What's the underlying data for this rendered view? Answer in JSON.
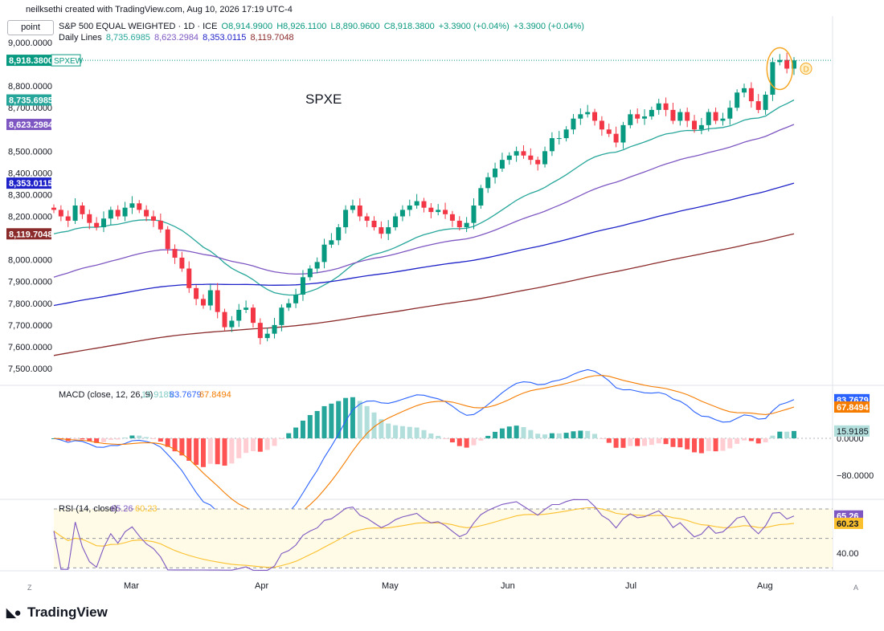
{
  "header": {
    "created_by": "neilksethi created with TradingView.com, Aug 10, 2026 17:19 UTC-4",
    "symbol_line": "S&P 500 EQUAL WEIGHTED · 1D · ICE",
    "ohlc": {
      "o": "O8,914.9900",
      "h": "H8,926.1100",
      "l": "L8,890.9600",
      "c": "C8,918.3800"
    },
    "change": "+3.3900 (+0.04%)",
    "change2": "+3.3900 (+0.04%)",
    "daily_lines_label": "Daily Lines",
    "daily_lines_values": [
      "8,735.6985",
      "8,623.2984",
      "8,353.0115",
      "8,119.7048"
    ]
  },
  "point_button": "point",
  "annotation": "SPXE",
  "chart_data": [
    {
      "type": "candlestick",
      "title": "S&P 500 EQUAL WEIGHTED · 1D · ICE",
      "x_ticks": [
        "Mar",
        "Apr",
        "May",
        "Jun",
        "Jul",
        "Aug"
      ],
      "y_ticks": [
        "9,000.0000",
        "8,800.0000",
        "8,700.0000",
        "8,500.0000",
        "8,400.0000",
        "8,300.0000",
        "8,200.0000",
        "8,000.0000",
        "7,900.0000",
        "7,800.0000",
        "7,700.0000",
        "7,600.0000",
        "7,500.0000"
      ],
      "ylim": [
        7450,
        9060
      ],
      "last_price_label": "8,918.3800",
      "symbol_tag": "SPXEW",
      "close_approx": [
        8230,
        8200,
        8180,
        8250,
        8210,
        8170,
        8150,
        8190,
        8230,
        8200,
        8240,
        8260,
        8230,
        8200,
        8180,
        8140,
        8050,
        8010,
        7960,
        7870,
        7820,
        7790,
        7860,
        7760,
        7690,
        7720,
        7770,
        7780,
        7710,
        7640,
        7660,
        7700,
        7780,
        7800,
        7840,
        7920,
        7960,
        7990,
        8070,
        8090,
        8150,
        8230,
        8250,
        8200,
        8180,
        8150,
        8120,
        8150,
        8200,
        8230,
        8250,
        8270,
        8240,
        8220,
        8230,
        8210,
        8180,
        8150,
        8170,
        8250,
        8330,
        8380,
        8420,
        8460,
        8480,
        8500,
        8480,
        8460,
        8440,
        8500,
        8560,
        8560,
        8600,
        8650,
        8670,
        8680,
        8640,
        8600,
        8580,
        8540,
        8620,
        8670,
        8650,
        8660,
        8690,
        8720,
        8690,
        8640,
        8680,
        8640,
        8600,
        8620,
        8680,
        8640,
        8650,
        8700,
        8770,
        8790,
        8730,
        8690,
        8760,
        8910,
        8920,
        8880,
        8918
      ],
      "moving_averages": [
        {
          "name": "8,735.6985",
          "color": "#26a69a",
          "last": 8735.6985
        },
        {
          "name": "8,623.2984",
          "color": "#7e57c2",
          "last": 8623.2984
        },
        {
          "name": "8,353.0115",
          "color": "#1e22c8",
          "last": 8353.0115
        },
        {
          "name": "8,119.7048",
          "color": "#8b2a2a",
          "last": 8119.7048
        }
      ]
    },
    {
      "type": "macd",
      "title": "MACD (close, 12, 26, 9)",
      "values_text": [
        "15.9185",
        "83.7679",
        "67.8494"
      ],
      "y_ticks": [
        "0.0000",
        "−80.0000"
      ],
      "ylim": [
        -130,
        110
      ],
      "labels": {
        "macd": "83.7679",
        "signal": "67.8494",
        "hist": "15.9185"
      }
    },
    {
      "type": "rsi",
      "title": "RSI (14, close)",
      "values_text": [
        "65.26",
        "60.23"
      ],
      "y_ticks": [
        "40.00"
      ],
      "ylim": [
        25,
        80
      ],
      "bands": [
        70,
        50,
        30
      ],
      "labels": {
        "rsi": "65.26",
        "ma": "60.23"
      }
    }
  ],
  "footer": {
    "logo_text": "TradingView",
    "left_letter": "Z",
    "right_letter": "A"
  },
  "colors": {
    "up": "#089981",
    "down": "#f23645",
    "hist_up": "#26a69a",
    "hist_up_light": "#b2dfdb",
    "hist_down": "#ff5252",
    "hist_down_light": "#ffcdd2",
    "macd": "#2962ff",
    "signal": "#f57c00",
    "rsi": "#7e57c2",
    "rsi_ma": "#fbc02d"
  }
}
